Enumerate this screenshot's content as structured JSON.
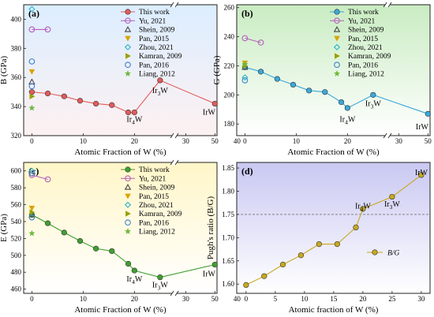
{
  "chart_data": [
    {
      "panel_label": "(a)",
      "type": "line",
      "title": "",
      "xlabel": "Atomic Fraction of W (%)",
      "ylabel": "B (GPa)",
      "xticks": [
        "0",
        "10",
        "20",
        "30",
        "40",
        "50"
      ],
      "xtick_positions": [
        0,
        10,
        20,
        30,
        40,
        50
      ],
      "yticks": [
        "320",
        "340",
        "360",
        "380",
        "400"
      ],
      "ylim": [
        320,
        410
      ],
      "axis_break": true,
      "background": [
        "#fdf1f1",
        "#dceeff"
      ],
      "series": [
        {
          "name": "This work",
          "marker": "circle-filled",
          "color": "#e35b5b",
          "line": true,
          "points": [
            [
              0,
              350
            ],
            [
              3.1,
              349
            ],
            [
              6.3,
              347
            ],
            [
              9.4,
              344
            ],
            [
              12.5,
              342
            ],
            [
              15.6,
              341
            ],
            [
              18.8,
              336
            ],
            [
              20,
              336
            ],
            [
              25,
              358
            ],
            [
              50,
              342
            ]
          ]
        },
        {
          "name": "Yu, 2021",
          "marker": "circle-open",
          "color": "#b55fbd",
          "line": true,
          "points": [
            [
              0,
              393
            ],
            [
              3.1,
              393
            ]
          ]
        },
        {
          "name": "Shein, 2009",
          "marker": "triangle-up-open",
          "color": "#444444",
          "line": false,
          "points": [
            [
              0,
              357
            ]
          ]
        },
        {
          "name": "Pan, 2015",
          "marker": "triangle-down",
          "color": "#d9a400",
          "line": false,
          "points": [
            [
              0,
              364
            ]
          ]
        },
        {
          "name": "Zhou, 2021",
          "marker": "diamond-open",
          "color": "#27b6c9",
          "line": false,
          "points": [
            [
              0,
              407
            ]
          ]
        },
        {
          "name": "Kamran, 2009",
          "marker": "triangle-right",
          "color": "#9aa000",
          "line": false,
          "points": [
            [
              0,
              347
            ]
          ]
        },
        {
          "name": "Pan, 2016",
          "marker": "circle-open",
          "color": "#3a7fd0",
          "line": false,
          "points": [
            [
              0,
              371
            ],
            [
              0,
              354
            ]
          ]
        },
        {
          "name": "Liang, 2012",
          "marker": "star",
          "color": "#6fb73d",
          "line": false,
          "points": [
            [
              0,
              339
            ]
          ]
        }
      ],
      "annotations": [
        {
          "text": "Ir4W",
          "x": 20,
          "y": 331
        },
        {
          "text": "Ir3W",
          "x": 25,
          "y": 351
        },
        {
          "text": "IrW",
          "x": 50,
          "y": 336
        }
      ]
    },
    {
      "panel_label": "(b)",
      "type": "line",
      "title": "",
      "xlabel": "Atomic Fraction of W (%)",
      "ylabel": "G (GPa)",
      "xticks": [
        "0",
        "10",
        "20",
        "30",
        "40",
        "50"
      ],
      "xtick_positions": [
        0,
        10,
        20,
        30,
        40,
        50
      ],
      "yticks": [
        "180",
        "200",
        "220",
        "240",
        "260"
      ],
      "ylim": [
        172,
        262
      ],
      "axis_break": true,
      "background": [
        "#ffffff",
        "#c9ecc2"
      ],
      "series": [
        {
          "name": "This work",
          "marker": "circle-filled",
          "color": "#3aa9dc",
          "line": true,
          "points": [
            [
              0,
              219
            ],
            [
              3.1,
              216
            ],
            [
              6.3,
              211
            ],
            [
              9.4,
              207
            ],
            [
              12.5,
              203
            ],
            [
              15.6,
              202
            ],
            [
              18.8,
              195
            ],
            [
              20,
              191
            ],
            [
              25,
              200
            ],
            [
              50,
              187
            ]
          ]
        },
        {
          "name": "Yu, 2021",
          "marker": "circle-open",
          "color": "#b55fbd",
          "line": true,
          "points": [
            [
              0,
              239
            ],
            [
              3.1,
              236
            ]
          ]
        },
        {
          "name": "Shein, 2009",
          "marker": "triangle-up-open",
          "color": "#444444",
          "line": false,
          "points": [
            [
              0,
              219
            ]
          ]
        },
        {
          "name": "Pan, 2015",
          "marker": "triangle-down",
          "color": "#d9a400",
          "line": false,
          "points": [
            [
              0,
              222
            ]
          ]
        },
        {
          "name": "Zhou, 2021",
          "marker": "diamond-open",
          "color": "#27b6c9",
          "line": false,
          "points": [
            [
              0,
              212
            ]
          ]
        },
        {
          "name": "Kamran, 2009",
          "marker": "triangle-right",
          "color": "#9aa000",
          "line": false,
          "points": [
            [
              0,
              220
            ]
          ]
        },
        {
          "name": "Pan, 2016",
          "marker": "circle-open",
          "color": "#3a7fd0",
          "line": false,
          "points": [
            [
              0,
              210
            ]
          ]
        },
        {
          "name": "Liang, 2012",
          "marker": "star",
          "color": "#6fb73d",
          "line": false,
          "points": [
            [
              0,
              221
            ]
          ]
        }
      ],
      "annotations": [
        {
          "text": "Ir4W",
          "x": 20,
          "y": 183
        },
        {
          "text": "Ir3W",
          "x": 25,
          "y": 194
        },
        {
          "text": "IrW",
          "x": 50,
          "y": 178
        }
      ]
    },
    {
      "panel_label": "(c)",
      "type": "line",
      "title": "",
      "xlabel": "Atomic Fraction of W (%)",
      "ylabel": "E (GPa)",
      "xticks": [
        "0",
        "10",
        "20",
        "30",
        "40",
        "50"
      ],
      "xtick_positions": [
        0,
        10,
        20,
        30,
        40,
        50
      ],
      "yticks": [
        "460",
        "480",
        "500",
        "520",
        "540",
        "560",
        "580",
        "600"
      ],
      "ylim": [
        455,
        610
      ],
      "axis_break": true,
      "background": [
        "#fff6c8",
        "#ffffff"
      ],
      "series": [
        {
          "name": "This work",
          "marker": "circle-filled",
          "color": "#3f9f2f",
          "line": true,
          "points": [
            [
              0,
              548
            ],
            [
              3.1,
              538
            ],
            [
              6.3,
              527
            ],
            [
              9.4,
              517
            ],
            [
              12.5,
              508
            ],
            [
              15.6,
              505
            ],
            [
              18.8,
              490
            ],
            [
              20,
              482
            ],
            [
              25,
              474
            ],
            [
              50,
              489
            ]
          ]
        },
        {
          "name": "Yu, 2021",
          "marker": "circle-open",
          "color": "#b55fbd",
          "line": true,
          "points": [
            [
              0,
              595
            ],
            [
              3.1,
              590
            ]
          ]
        },
        {
          "name": "Shein, 2009",
          "marker": "triangle-up-open",
          "color": "#444444",
          "line": false,
          "points": [
            [
              0,
              548
            ]
          ]
        },
        {
          "name": "Pan, 2015",
          "marker": "triangle-down",
          "color": "#d9a400",
          "line": false,
          "points": [
            [
              0,
              556
            ]
          ]
        },
        {
          "name": "Zhou, 2021",
          "marker": "diamond-open",
          "color": "#27b6c9",
          "line": false,
          "points": [
            [
              0,
              600
            ]
          ]
        },
        {
          "name": "Kamran, 2009",
          "marker": "triangle-right",
          "color": "#9aa000",
          "line": false,
          "points": [
            [
              0,
              551
            ]
          ]
        },
        {
          "name": "Pan, 2016",
          "marker": "circle-open",
          "color": "#3a7fd0",
          "line": false,
          "points": [
            [
              0,
              597
            ],
            [
              0,
              545
            ]
          ]
        },
        {
          "name": "Liang, 2012",
          "marker": "star",
          "color": "#6fb73d",
          "line": false,
          "points": [
            [
              0,
              526
            ]
          ]
        }
      ],
      "annotations": [
        {
          "text": "Ir4W",
          "x": 20,
          "y": 472
        },
        {
          "text": "Ir3W",
          "x": 25,
          "y": 465
        },
        {
          "text": "IrW",
          "x": 50,
          "y": 478
        }
      ]
    },
    {
      "panel_label": "(d)",
      "type": "line",
      "title": "",
      "xlabel": "Atomic fraction of W (%)",
      "ylabel": "Pugh's ratio (B/G)",
      "xticks": [
        "0",
        "5",
        "10",
        "15",
        "20",
        "25",
        "30"
      ],
      "xtick_positions": [
        0,
        5,
        10,
        15,
        20,
        25,
        30
      ],
      "yticks": [
        "1.60",
        "1.65",
        "1.70",
        "1.75",
        "1.80",
        "1.85"
      ],
      "ylim": [
        1.58,
        1.862
      ],
      "axis_break": false,
      "reference_line": 1.75,
      "background": [
        "#ffffff",
        "#c9c8f2"
      ],
      "series": [
        {
          "name": "B/G",
          "marker": "circle-filled",
          "color": "#c9a81e",
          "line": true,
          "points": [
            [
              0,
              1.598
            ],
            [
              3.1,
              1.617
            ],
            [
              6.3,
              1.642
            ],
            [
              9.4,
              1.662
            ],
            [
              12.5,
              1.686
            ],
            [
              15.6,
              1.686
            ],
            [
              18.8,
              1.722
            ],
            [
              20,
              1.762
            ],
            [
              25,
              1.788
            ],
            [
              30,
              1.835
            ]
          ]
        }
      ],
      "annotations": [
        {
          "text": "Ir4W",
          "x": 20,
          "y": 1.768
        },
        {
          "text": "Ir3W",
          "x": 25,
          "y": 1.772
        },
        {
          "text": "IrW",
          "x": 30,
          "y": 1.84
        }
      ]
    }
  ]
}
